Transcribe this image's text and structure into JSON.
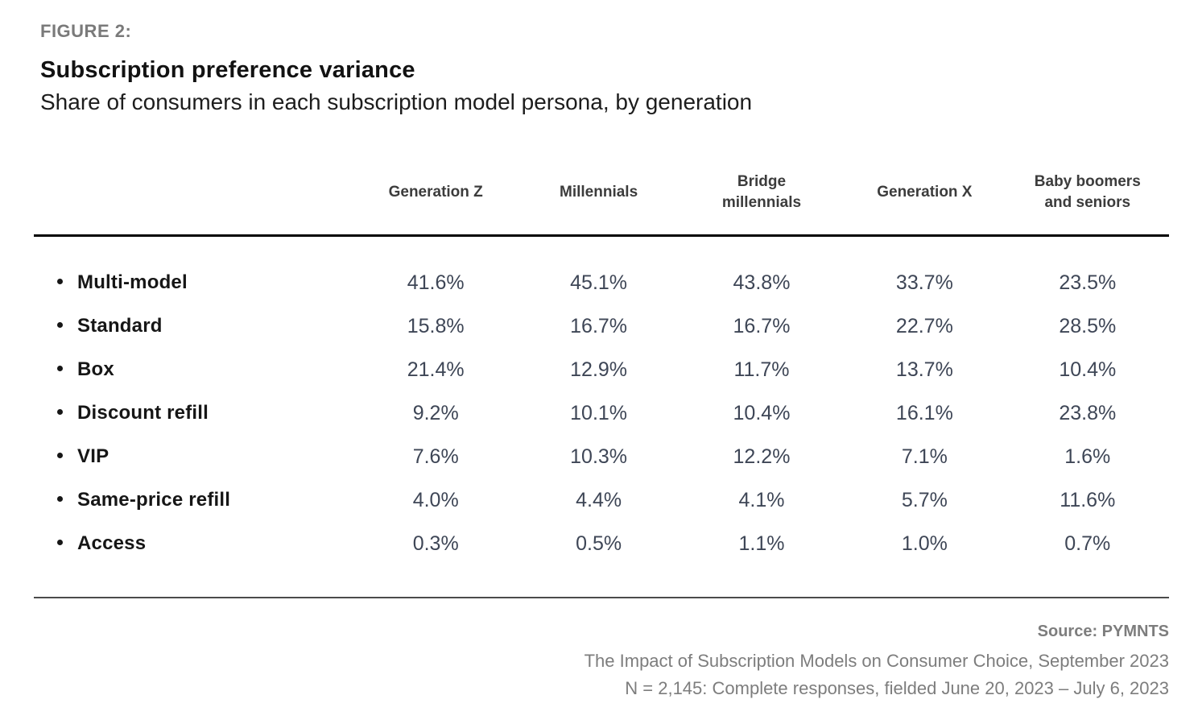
{
  "figure": {
    "label": "FIGURE 2:",
    "title": "Subscription preference variance",
    "subtitle": "Share of consumers in each subscription model persona, by generation"
  },
  "chart_data": {
    "type": "table",
    "title": "Subscription preference variance",
    "subtitle": "Share of consumers in each subscription model persona, by generation",
    "columns": [
      "Generation Z",
      "Millennials",
      "Bridge millennials",
      "Generation X",
      "Baby boomers and seniors"
    ],
    "row_header": "",
    "rows": [
      {
        "label": "Multi-model",
        "values": [
          "41.6%",
          "45.1%",
          "43.8%",
          "33.7%",
          "23.5%"
        ]
      },
      {
        "label": "Standard",
        "values": [
          "15.8%",
          "16.7%",
          "16.7%",
          "22.7%",
          "28.5%"
        ]
      },
      {
        "label": "Box",
        "values": [
          "21.4%",
          "12.9%",
          "11.7%",
          "13.7%",
          "10.4%"
        ]
      },
      {
        "label": "Discount refill",
        "values": [
          "9.2%",
          "10.1%",
          "10.4%",
          "16.1%",
          "23.8%"
        ]
      },
      {
        "label": "VIP",
        "values": [
          "7.6%",
          "10.3%",
          "12.2%",
          "7.1%",
          "1.6%"
        ]
      },
      {
        "label": "Same-price refill",
        "values": [
          "4.0%",
          "4.4%",
          "4.1%",
          "5.7%",
          "11.6%"
        ]
      },
      {
        "label": "Access",
        "values": [
          "0.3%",
          "0.5%",
          "1.1%",
          "1.0%",
          "0.7%"
        ]
      }
    ],
    "unit": "%",
    "value_range": [
      0.3,
      45.1
    ],
    "grid": "off",
    "legend": "none"
  },
  "footer": {
    "source": "Source: PYMNTS",
    "report": "The Impact of Subscription Models on Consumer Choice, September 2023",
    "sample": "N = 2,145: Complete responses, fielded June 20, 2023 – July 6, 2023"
  },
  "colors": {
    "background": "#ffffff",
    "figure_label": "#7a7a7a",
    "title": "#121212",
    "subtitle": "#1d1d1d",
    "column_header": "#3c3c3c",
    "row_label": "#161616",
    "value_text": "#3e4656",
    "header_rule": "#000000",
    "bottom_rule": "#4b4b4b",
    "footer_text": "#7d7d7d"
  }
}
